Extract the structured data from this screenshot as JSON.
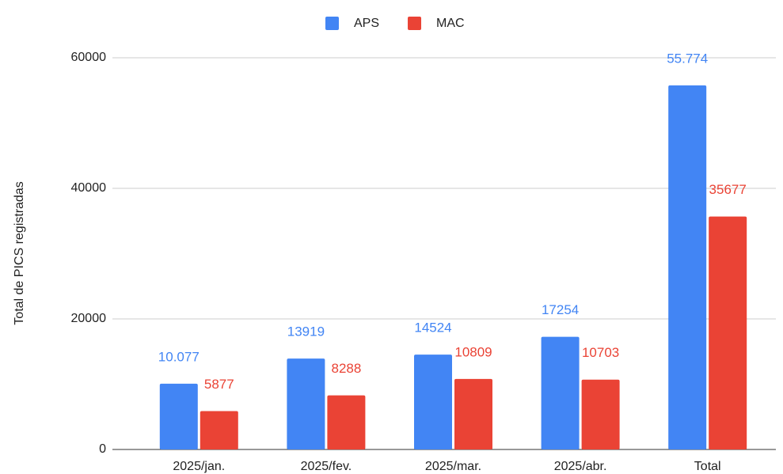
{
  "chart_data": {
    "type": "bar",
    "categories": [
      "2025/jan.",
      "2025/fev.",
      "2025/mar.",
      "2025/abr.",
      "Total"
    ],
    "series": [
      {
        "name": "APS",
        "color": "#4285f4",
        "values": [
          10077,
          13919,
          14524,
          17254,
          55774
        ],
        "value_labels": [
          "10.077",
          "13919",
          "14524",
          "17254",
          "55.774"
        ]
      },
      {
        "name": "MAC",
        "color": "#ea4335",
        "values": [
          5877,
          8288,
          10809,
          10703,
          35677
        ]
      }
    ],
    "y_label": "Total de PICS registradas",
    "ylim": [
      0,
      60000
    ],
    "yticks": [
      0,
      20000,
      40000,
      60000
    ],
    "grid": true,
    "legend": "top"
  }
}
